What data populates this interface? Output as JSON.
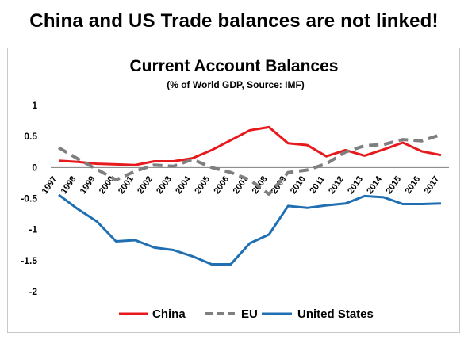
{
  "headline": "China and US Trade balances are not linked!",
  "chart_data": {
    "type": "line",
    "title": "Current Account Balances",
    "subtitle": "(% of World GDP, Source: IMF)",
    "xlabel": "",
    "ylabel": "",
    "x": [
      "1997",
      "1998",
      "1999",
      "2000",
      "2001",
      "2002",
      "2003",
      "2004",
      "2005",
      "2006",
      "2007",
      "2008",
      "2009",
      "2010",
      "2011",
      "2012",
      "2013",
      "2014",
      "2015",
      "2016",
      "2017"
    ],
    "ylim": [
      -2,
      1
    ],
    "yticks": [
      1,
      0.5,
      0,
      -0.5,
      -1,
      -1.5,
      -2
    ],
    "ytick_labels": [
      "1",
      "0.5",
      "0",
      "-0.5",
      "-1",
      "-1.5",
      "-2"
    ],
    "grid": false,
    "legend_position": "bottom",
    "series": [
      {
        "name": "China",
        "color": "#e8191c",
        "style": "solid",
        "values": [
          0.11,
          0.09,
          0.06,
          0.05,
          0.04,
          0.1,
          0.1,
          0.15,
          0.28,
          0.44,
          0.6,
          0.65,
          0.39,
          0.36,
          0.18,
          0.28,
          0.19,
          0.29,
          0.4,
          0.26,
          0.2
        ]
      },
      {
        "name": "EU",
        "color": "#7f7f7f",
        "style": "dashed",
        "values": [
          0.32,
          0.14,
          -0.03,
          -0.2,
          -0.06,
          0.04,
          0.02,
          0.13,
          0.0,
          -0.08,
          -0.2,
          -0.43,
          -0.08,
          -0.04,
          0.06,
          0.25,
          0.35,
          0.37,
          0.45,
          0.43,
          0.53
        ]
      },
      {
        "name": "United States",
        "color": "#1f6fb2",
        "style": "solid",
        "values": [
          -0.44,
          -0.67,
          -0.87,
          -1.19,
          -1.17,
          -1.29,
          -1.33,
          -1.43,
          -1.56,
          -1.56,
          -1.22,
          -1.08,
          -0.62,
          -0.65,
          -0.61,
          -0.58,
          -0.46,
          -0.48,
          -0.59,
          -0.59,
          -0.58
        ]
      }
    ]
  }
}
